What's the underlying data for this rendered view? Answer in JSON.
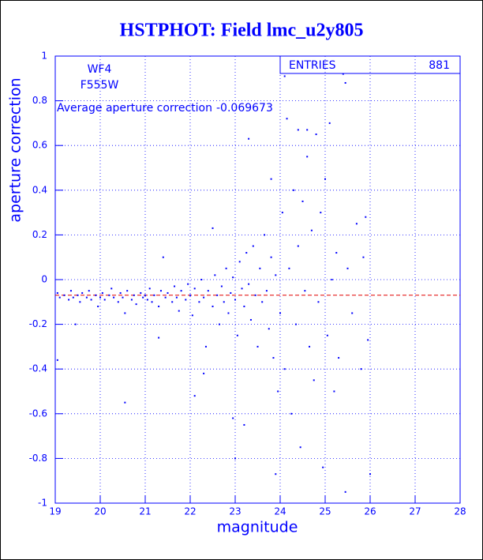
{
  "chart_data": {
    "type": "scatter",
    "title": "HSTPHOT: Field lmc_u2y805",
    "xlabel": "magnitude",
    "ylabel": "aperture correction",
    "labels": [
      "WF4",
      "F555W"
    ],
    "average_label": "Average aperture correction",
    "average": -0.069673,
    "average_color": "#e00000",
    "stats_label": "ENTRIES",
    "entries": 881,
    "color": "#0000ff",
    "grid": true,
    "xlim": [
      19,
      28
    ],
    "ylim": [
      -1,
      1
    ],
    "xticks": [
      19,
      20,
      21,
      22,
      23,
      24,
      25,
      26,
      27,
      28
    ],
    "yticks": [
      -1,
      -0.8,
      -0.6,
      -0.4,
      -0.2,
      0,
      0.2,
      0.4,
      0.6,
      0.8,
      1
    ],
    "x": [
      19.05,
      19.1,
      19.2,
      19.3,
      19.35,
      19.4,
      19.5,
      19.55,
      19.6,
      19.7,
      19.75,
      19.8,
      19.9,
      19.95,
      20.0,
      20.05,
      20.1,
      20.2,
      20.25,
      20.3,
      20.4,
      20.45,
      20.5,
      20.55,
      20.6,
      20.7,
      20.75,
      20.8,
      20.9,
      20.95,
      21.0,
      21.05,
      21.1,
      21.15,
      21.2,
      21.3,
      21.35,
      21.4,
      21.45,
      21.5,
      21.6,
      21.65,
      21.7,
      21.75,
      21.8,
      21.9,
      21.95,
      22.0,
      22.05,
      22.1,
      22.2,
      22.25,
      22.3,
      22.35,
      22.4,
      22.5,
      22.55,
      22.6,
      22.65,
      22.7,
      22.75,
      22.8,
      22.85,
      22.9,
      22.95,
      23.0,
      23.05,
      23.1,
      23.15,
      23.2,
      23.25,
      23.3,
      23.35,
      23.4,
      23.45,
      23.5,
      23.55,
      23.6,
      23.65,
      23.7,
      23.75,
      23.8,
      23.85,
      23.9,
      23.95,
      23.3,
      22.95,
      23.2,
      23.8,
      24.0,
      24.05,
      24.1,
      24.15,
      24.2,
      24.25,
      24.3,
      24.35,
      24.4,
      24.45,
      24.5,
      24.55,
      24.6,
      24.65,
      24.7,
      24.75,
      24.8,
      24.85,
      24.9,
      24.95,
      25.0,
      25.05,
      25.1,
      25.15,
      25.2,
      25.25,
      25.3,
      25.4,
      25.45,
      25.5,
      25.6,
      25.7,
      25.8,
      25.9,
      26.0,
      25.95,
      25.85,
      24.1,
      25.45,
      22.5,
      23.0,
      22.3,
      21.3,
      22.1,
      19.05,
      19.45,
      20.55,
      23.9,
      24.6,
      24.4
    ],
    "values": [
      -0.06,
      -0.08,
      -0.07,
      -0.09,
      -0.05,
      -0.08,
      -0.07,
      -0.1,
      -0.06,
      -0.08,
      -0.05,
      -0.09,
      -0.07,
      -0.12,
      -0.08,
      -0.06,
      -0.09,
      -0.07,
      -0.04,
      -0.08,
      -0.1,
      -0.06,
      -0.08,
      -0.55,
      -0.05,
      -0.09,
      -0.07,
      -0.11,
      -0.06,
      -0.08,
      -0.07,
      -0.09,
      -0.04,
      -0.1,
      -0.07,
      -0.12,
      -0.05,
      0.1,
      -0.08,
      -0.06,
      -0.1,
      -0.03,
      -0.08,
      -0.14,
      -0.05,
      -0.09,
      -0.02,
      -0.07,
      -0.16,
      -0.04,
      -0.1,
      0.0,
      -0.08,
      -0.3,
      -0.05,
      -0.12,
      0.02,
      -0.07,
      -0.2,
      -0.03,
      -0.1,
      0.05,
      -0.15,
      -0.06,
      0.01,
      -0.09,
      -0.25,
      0.08,
      -0.04,
      -0.12,
      0.12,
      -0.02,
      -0.18,
      0.15,
      -0.07,
      -0.3,
      0.05,
      -0.1,
      0.2,
      -0.05,
      -0.22,
      0.1,
      -0.35,
      0.02,
      -0.5,
      0.63,
      -0.62,
      -0.65,
      0.45,
      -0.15,
      0.3,
      -0.4,
      0.72,
      0.05,
      -0.6,
      0.4,
      -0.2,
      0.15,
      -0.75,
      0.35,
      -0.05,
      0.55,
      -0.3,
      0.22,
      -0.45,
      0.65,
      -0.1,
      0.3,
      -0.84,
      0.45,
      -0.25,
      0.7,
      0.0,
      -0.5,
      0.12,
      -0.35,
      0.92,
      -0.95,
      0.05,
      -0.15,
      0.25,
      -0.4,
      0.28,
      -0.87,
      -0.27,
      0.1,
      0.91,
      0.88,
      0.23,
      -0.8,
      -0.42,
      -0.26,
      -0.52,
      -0.36,
      -0.2,
      -0.15,
      -0.87,
      0.67,
      0.67
    ]
  }
}
